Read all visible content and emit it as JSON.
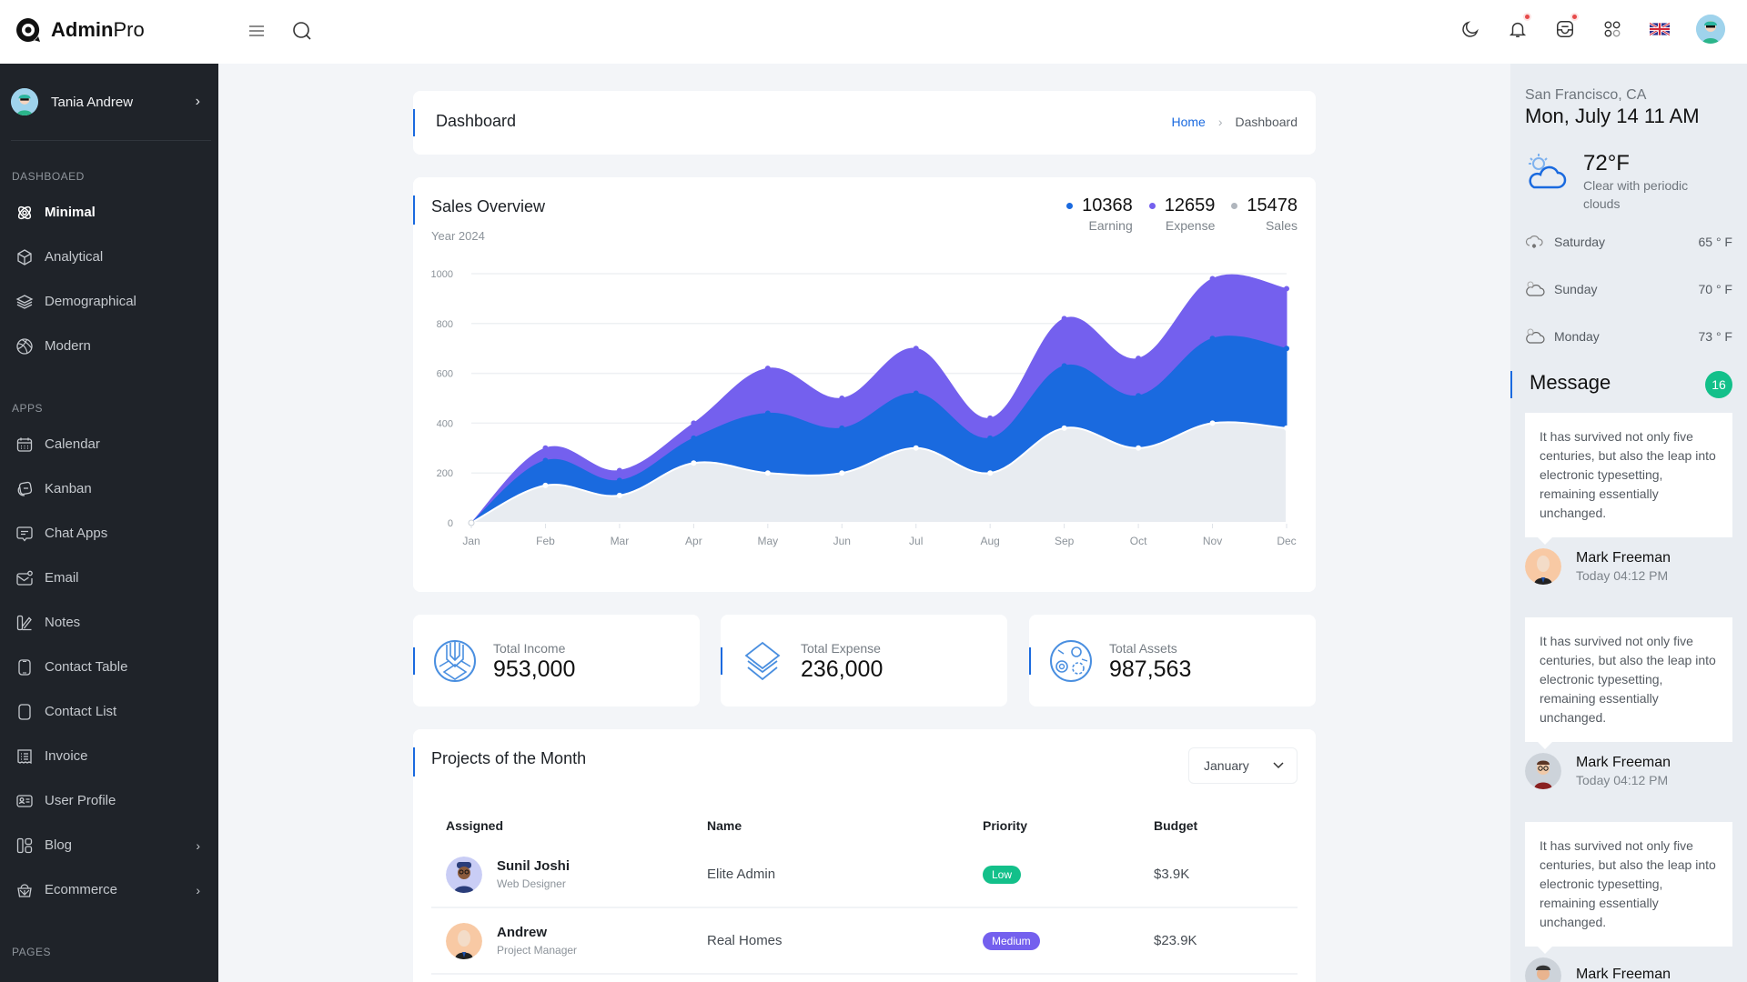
{
  "header": {
    "brand_bold": "Admin",
    "brand_light": "Pro",
    "icons": [
      "menu-icon",
      "search-icon",
      "moon-icon",
      "bell-icon",
      "inbox-icon",
      "apps-icon",
      "uk-flag-icon",
      "avatar"
    ],
    "notification_dot_color": "#e64a4a"
  },
  "sidebar": {
    "user_name": "Tania Andrew",
    "sections": [
      {
        "title": "DASHBOAED",
        "items": [
          {
            "label": "Minimal",
            "icon": "atom-icon",
            "active": true
          },
          {
            "label": "Analytical",
            "icon": "cube-icon"
          },
          {
            "label": "Demographical",
            "icon": "layers-icon"
          },
          {
            "label": "Modern",
            "icon": "basketball-icon"
          }
        ]
      },
      {
        "title": "APPS",
        "items": [
          {
            "label": "Calendar",
            "icon": "calendar-icon"
          },
          {
            "label": "Kanban",
            "icon": "kanban-icon"
          },
          {
            "label": "Chat Apps",
            "icon": "chat-icon"
          },
          {
            "label": "Email",
            "icon": "email-icon"
          },
          {
            "label": "Notes",
            "icon": "notes-icon"
          },
          {
            "label": "Contact Table",
            "icon": "phone-icon"
          },
          {
            "label": "Contact List",
            "icon": "phone-icon"
          },
          {
            "label": "Invoice",
            "icon": "invoice-icon"
          },
          {
            "label": "User Profile",
            "icon": "id-card-icon"
          },
          {
            "label": "Blog",
            "icon": "blog-icon",
            "has_children": true
          },
          {
            "label": "Ecommerce",
            "icon": "basket-icon",
            "has_children": true
          }
        ]
      },
      {
        "title": "PAGES",
        "items": []
      }
    ],
    "chevron": "›"
  },
  "page_header": {
    "title": "Dashboard",
    "breadcrumb": {
      "home": "Home",
      "separator": "›",
      "current": "Dashboard"
    }
  },
  "sales_overview": {
    "title": "Sales Overview",
    "subtitle": "Year 2024",
    "legend": [
      {
        "value": "10368",
        "label": "Earning",
        "color": "#1a6adf"
      },
      {
        "value": "12659",
        "label": "Expense",
        "color": "#7460ee"
      },
      {
        "value": "15478",
        "label": "Sales",
        "color": "#b0b6bd"
      }
    ]
  },
  "chart_data": {
    "type": "area",
    "stacked": true,
    "title": "Sales Overview",
    "subtitle": "Year 2024",
    "categories": [
      "Jan",
      "Feb",
      "Mar",
      "Apr",
      "May",
      "Jun",
      "Jul",
      "Aug",
      "Sep",
      "Oct",
      "Nov",
      "Dec"
    ],
    "series": [
      {
        "name": "Sales",
        "color": "#e8ecf1",
        "values": [
          0,
          150,
          110,
          240,
          200,
          200,
          300,
          200,
          380,
          300,
          400,
          380
        ]
      },
      {
        "name": "Earning",
        "color": "#1a6adf",
        "values": [
          0,
          100,
          60,
          100,
          240,
          180,
          220,
          140,
          250,
          210,
          340,
          320
        ]
      },
      {
        "name": "Expense",
        "color": "#7460ee",
        "values": [
          0,
          50,
          40,
          60,
          180,
          120,
          180,
          80,
          190,
          150,
          240,
          240
        ]
      }
    ],
    "cumulative_tops": {
      "Sales": [
        0,
        150,
        110,
        240,
        200,
        200,
        300,
        200,
        380,
        300,
        400,
        380
      ],
      "Earning": [
        0,
        250,
        170,
        340,
        440,
        380,
        520,
        340,
        630,
        510,
        740,
        700
      ],
      "Expense": [
        0,
        300,
        210,
        400,
        620,
        500,
        700,
        420,
        820,
        660,
        980,
        940
      ]
    },
    "yticks": [
      0,
      200,
      400,
      600,
      800,
      1000
    ],
    "ylim": [
      0,
      1000
    ],
    "xlabel": "",
    "ylabel": "",
    "grid": true,
    "legend_position": "top-right"
  },
  "stats": [
    {
      "label": "Total Income",
      "value": "953,000",
      "icon": "income-icon"
    },
    {
      "label": "Total Expense",
      "value": "236,000",
      "icon": "layers-expense-icon"
    },
    {
      "label": "Total Assets",
      "value": "987,563",
      "icon": "assets-icon"
    }
  ],
  "projects": {
    "title": "Projects of the Month",
    "month_selected": "January",
    "columns": [
      "Assigned",
      "Name",
      "Priority",
      "Budget"
    ],
    "rows": [
      {
        "assignee": "Sunil Joshi",
        "role": "Web Designer",
        "name": "Elite Admin",
        "priority": "Low",
        "priority_color": "#13c08a",
        "budget": "$3.9K"
      },
      {
        "assignee": "Andrew",
        "role": "Project Manager",
        "name": "Real Homes",
        "priority": "Medium",
        "priority_color": "#7460ee",
        "budget": "$23.9K"
      }
    ]
  },
  "weather": {
    "location": "San Francisco, CA",
    "datetime": "Mon, July 14 11 AM",
    "temp": "72°F",
    "description": "Clear with periodic clouds",
    "forecast": [
      {
        "day": "Saturday",
        "temp": "65 ° F",
        "icon": "snow-cloud-icon"
      },
      {
        "day": "Sunday",
        "temp": "70 ° F",
        "icon": "cloud-icon"
      },
      {
        "day": "Monday",
        "temp": "73 ° F",
        "icon": "cloud-icon"
      }
    ]
  },
  "messages": {
    "title": "Message",
    "count": "16",
    "items": [
      {
        "text": "It has survived not only five centuries, but also the leap into electronic typesetting, remaining essentially unchanged.",
        "author": "Mark Freeman",
        "time": "Today 04:12 PM"
      },
      {
        "text": "It has survived not only five centuries, but also the leap into electronic typesetting, remaining essentially unchanged.",
        "author": "Mark Freeman",
        "time": "Today 04:12 PM"
      },
      {
        "text": "It has survived not only five centuries, but also the leap into electronic typesetting, remaining essentially unchanged.",
        "author": "Mark Freeman",
        "time": ""
      }
    ]
  }
}
